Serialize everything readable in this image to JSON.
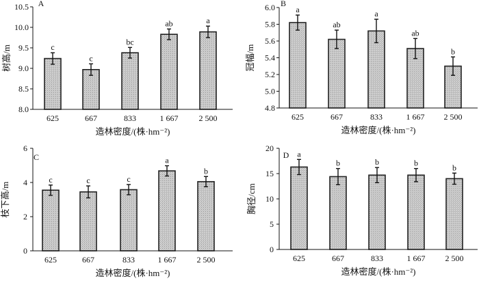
{
  "chart_data": [
    {
      "type": "bar",
      "panel_label": "A",
      "categories": [
        "625",
        "667",
        "833",
        "1 667",
        "2 500"
      ],
      "values": [
        9.24,
        8.97,
        9.38,
        9.83,
        9.89
      ],
      "errors": [
        0.14,
        0.14,
        0.13,
        0.13,
        0.14
      ],
      "letters": [
        "c",
        "c",
        "bc",
        "ab",
        "a"
      ],
      "xlabel": "造林密度/(株·hm⁻²)",
      "ylabel": "树高/m",
      "ylim": [
        8.0,
        10.5
      ],
      "yticks": [
        "8.0",
        "8.5",
        "9.0",
        "9.5",
        "10.0",
        "10.5"
      ],
      "ytick_values": [
        8.0,
        8.5,
        9.0,
        9.5,
        10.0,
        10.5
      ]
    },
    {
      "type": "bar",
      "panel_label": "B",
      "categories": [
        "625",
        "667",
        "833",
        "1 667",
        "2 500"
      ],
      "values": [
        5.82,
        5.62,
        5.72,
        5.51,
        5.3
      ],
      "errors": [
        0.09,
        0.11,
        0.14,
        0.12,
        0.11
      ],
      "letters": [
        "a",
        "ab",
        "a",
        "ab",
        "b"
      ],
      "xlabel": "造林密度/(株·hm⁻²)",
      "ylabel": "冠幅/m",
      "ylim": [
        4.8,
        6.0
      ],
      "yticks": [
        "4.8",
        "5.0",
        "5.2",
        "5.4",
        "5.6",
        "5.8",
        "6.0"
      ],
      "ytick_values": [
        4.8,
        5.0,
        5.2,
        5.4,
        5.6,
        5.8,
        6.0
      ]
    },
    {
      "type": "bar",
      "panel_label": "C",
      "categories": [
        "625",
        "667",
        "833",
        "1 667",
        "2 500"
      ],
      "values": [
        3.55,
        3.45,
        3.58,
        4.68,
        4.05
      ],
      "errors": [
        0.3,
        0.35,
        0.3,
        0.3,
        0.3
      ],
      "letters": [
        "c",
        "c",
        "c",
        "a",
        "b"
      ],
      "xlabel": "造林密度/(株·hm⁻²)",
      "ylabel": "枝下高/m",
      "ylim": [
        0,
        6
      ],
      "yticks": [
        "0",
        "2",
        "4",
        "6"
      ],
      "ytick_values": [
        0,
        2,
        4,
        6
      ]
    },
    {
      "type": "bar",
      "panel_label": "D",
      "categories": [
        "625",
        "667",
        "833",
        "1 667",
        "2 500"
      ],
      "values": [
        16.3,
        14.4,
        14.7,
        14.7,
        14.0
      ],
      "errors": [
        1.5,
        1.6,
        1.5,
        1.3,
        1.1
      ],
      "letters": [
        "a",
        "b",
        "b",
        "b",
        "b"
      ],
      "xlabel": "造林密度/(株·hm⁻²)",
      "ylabel": "胸径/cm",
      "ylim": [
        0,
        20
      ],
      "yticks": [
        "0",
        "5",
        "10",
        "15",
        "20"
      ],
      "ytick_values": [
        0,
        5,
        10,
        15,
        20
      ]
    }
  ]
}
